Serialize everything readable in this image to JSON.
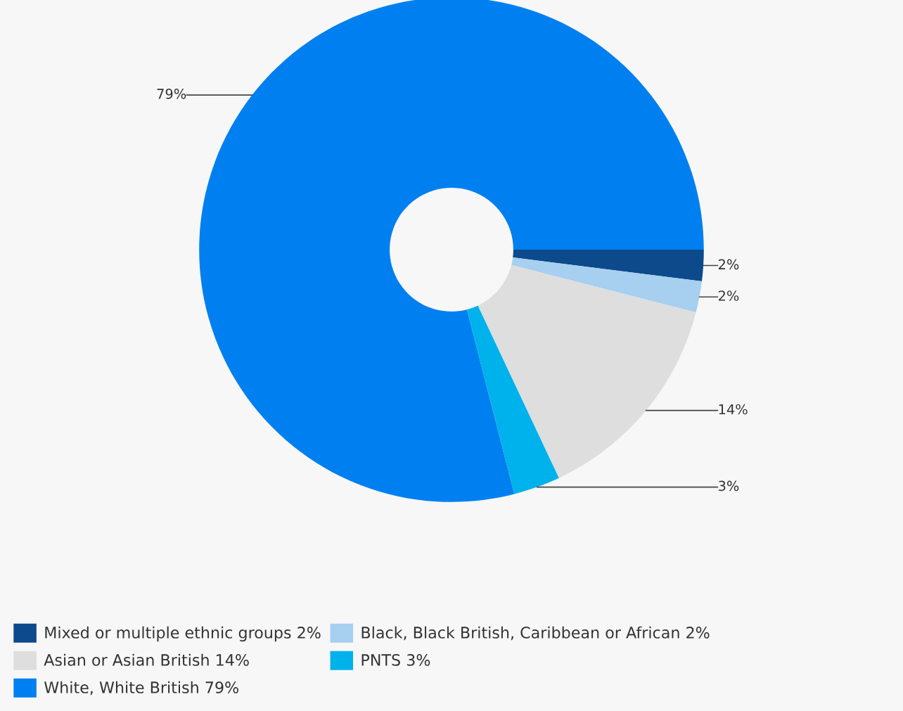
{
  "chart_data": {
    "type": "donut",
    "categories": [
      "Mixed or multiple ethnic groups",
      "Black, Black British, Caribbean or African",
      "Asian or Asian British",
      "PNTS",
      "White, White British"
    ],
    "values": [
      2,
      2,
      14,
      3,
      79
    ],
    "value_labels": [
      "2%",
      "2%",
      "14%",
      "3%",
      "79%"
    ],
    "colors": [
      "#0d4a8c",
      "#a6cff0",
      "#dedede",
      "#00b2ec",
      "#0080f0"
    ],
    "legend": "bottom"
  }
}
